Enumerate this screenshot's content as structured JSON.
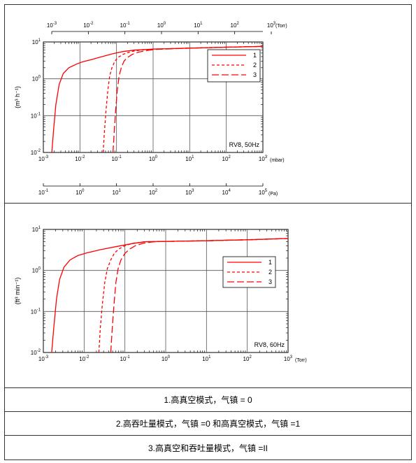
{
  "chart_data": [
    {
      "type": "line",
      "x_scale": "log",
      "y_scale": "log",
      "xlim": [
        0.001,
        1000
      ],
      "ylim": [
        0.01,
        10
      ],
      "grid": true,
      "ylabel": "(m³ h⁻¹)",
      "annotation": "RV8, 50Hz",
      "legend_position": "top-right",
      "legend": [
        "1",
        "2",
        "3"
      ],
      "line_color": "#ff0000",
      "bottom_axis": {
        "unit": "(mbar)",
        "ticks": [
          {
            "base": "10",
            "exp": "-3"
          },
          {
            "base": "10",
            "exp": "-2"
          },
          {
            "base": "10",
            "exp": "-1"
          },
          {
            "base": "10",
            "exp": "0"
          },
          {
            "base": "10",
            "exp": "1"
          },
          {
            "base": "10",
            "exp": "2"
          },
          {
            "base": "10",
            "exp": "3"
          }
        ]
      },
      "top_axis": {
        "unit": "(Torr)",
        "ticks": [
          {
            "base": "10",
            "exp": "-3"
          },
          {
            "base": "10",
            "exp": "-2"
          },
          {
            "base": "10",
            "exp": "-1"
          },
          {
            "base": "10",
            "exp": "0"
          },
          {
            "base": "10",
            "exp": "1"
          },
          {
            "base": "10",
            "exp": "2"
          },
          {
            "base": "10",
            "exp": "3"
          }
        ]
      },
      "pa_axis": {
        "unit": "(Pa)",
        "ticks": [
          {
            "base": "10",
            "exp": "-1"
          },
          {
            "base": "10",
            "exp": "0"
          },
          {
            "base": "10",
            "exp": "1"
          },
          {
            "base": "10",
            "exp": "2"
          },
          {
            "base": "10",
            "exp": "3"
          },
          {
            "base": "10",
            "exp": "4"
          },
          {
            "base": "10",
            "exp": "5"
          }
        ]
      },
      "y_ticks": [
        {
          "base": "10",
          "exp": "-2"
        },
        {
          "base": "10",
          "exp": "-1"
        },
        {
          "base": "10",
          "exp": "0"
        },
        {
          "base": "10",
          "exp": "1"
        }
      ],
      "series": [
        {
          "name": "1",
          "style": "solid",
          "x": [
            0.0017,
            0.0019,
            0.0022,
            0.0027,
            0.0035,
            0.005,
            0.008,
            0.012,
            0.02,
            0.04,
            0.08,
            0.15,
            0.3,
            1,
            10,
            100,
            1000
          ],
          "y": [
            0.01,
            0.04,
            0.2,
            0.7,
            1.4,
            2.0,
            2.5,
            2.9,
            3.3,
            4.0,
            4.8,
            5.5,
            6.0,
            6.4,
            6.8,
            7.2,
            7.6
          ]
        },
        {
          "name": "2",
          "style": "dashed",
          "x": [
            0.043,
            0.047,
            0.052,
            0.058,
            0.065,
            0.075,
            0.09,
            0.11,
            0.15,
            0.25,
            0.5,
            1,
            10,
            100,
            1000
          ],
          "y": [
            0.01,
            0.04,
            0.15,
            0.5,
            1.2,
            2.0,
            3.0,
            3.8,
            4.6,
            5.5,
            6.1,
            6.4,
            6.8,
            7.2,
            7.6
          ]
        },
        {
          "name": "3",
          "style": "long-dash",
          "x": [
            0.08,
            0.087,
            0.095,
            0.105,
            0.118,
            0.135,
            0.16,
            0.2,
            0.27,
            0.4,
            0.7,
            1.2,
            10,
            100,
            1000
          ],
          "y": [
            0.01,
            0.04,
            0.15,
            0.5,
            1.2,
            2.0,
            3.0,
            3.8,
            4.6,
            5.3,
            5.9,
            6.3,
            6.8,
            7.2,
            7.6
          ]
        }
      ]
    },
    {
      "type": "line",
      "x_scale": "log",
      "y_scale": "log",
      "xlim": [
        0.001,
        1000
      ],
      "ylim": [
        0.01,
        10
      ],
      "grid": true,
      "ylabel": "(ft³ min⁻¹)",
      "annotation": "RV8, 60Hz",
      "legend_position": "top-right",
      "legend": [
        "1",
        "2",
        "3"
      ],
      "line_color": "#ff0000",
      "bottom_axis": {
        "unit": "(Torr)",
        "ticks": [
          {
            "base": "10",
            "exp": "-3"
          },
          {
            "base": "10",
            "exp": "-2"
          },
          {
            "base": "10",
            "exp": "-1"
          },
          {
            "base": "10",
            "exp": "0"
          },
          {
            "base": "10",
            "exp": "1"
          },
          {
            "base": "10",
            "exp": "2"
          },
          {
            "base": "10",
            "exp": "3"
          }
        ]
      },
      "y_ticks": [
        {
          "base": "10",
          "exp": "-2"
        },
        {
          "base": "10",
          "exp": "-1"
        },
        {
          "base": "10",
          "exp": "0"
        },
        {
          "base": "10",
          "exp": "1"
        }
      ],
      "series": [
        {
          "name": "1",
          "style": "solid",
          "x": [
            0.0016,
            0.0018,
            0.0021,
            0.0025,
            0.0032,
            0.0045,
            0.007,
            0.012,
            0.025,
            0.06,
            0.15,
            0.3,
            1,
            10,
            100,
            1000
          ],
          "y": [
            0.01,
            0.04,
            0.2,
            0.6,
            1.2,
            1.8,
            2.3,
            2.7,
            3.2,
            3.8,
            4.5,
            5.0,
            5.1,
            5.3,
            5.6,
            6.0
          ]
        },
        {
          "name": "2",
          "style": "dashed",
          "x": [
            0.023,
            0.025,
            0.028,
            0.032,
            0.037,
            0.045,
            0.055,
            0.07,
            0.1,
            0.16,
            0.3,
            1,
            10,
            100,
            1000
          ],
          "y": [
            0.01,
            0.04,
            0.15,
            0.5,
            1.1,
            1.8,
            2.6,
            3.3,
            4.0,
            4.6,
            5.0,
            5.1,
            5.3,
            5.6,
            6.0
          ]
        },
        {
          "name": "3",
          "style": "long-dash",
          "x": [
            0.045,
            0.049,
            0.054,
            0.06,
            0.068,
            0.08,
            0.1,
            0.13,
            0.18,
            0.28,
            0.5,
            1,
            10,
            100,
            1000
          ],
          "y": [
            0.01,
            0.04,
            0.15,
            0.5,
            1.1,
            1.8,
            2.6,
            3.3,
            4.0,
            4.6,
            5.0,
            5.1,
            5.3,
            5.6,
            6.0
          ]
        }
      ]
    }
  ],
  "captions": [
    "1.高真空模式，气镇 = 0",
    "2.高吞吐量模式，气镇 =0 和高真空模式，气镇 =1",
    "3.高真空和吞吐量模式，气镇 =II"
  ]
}
